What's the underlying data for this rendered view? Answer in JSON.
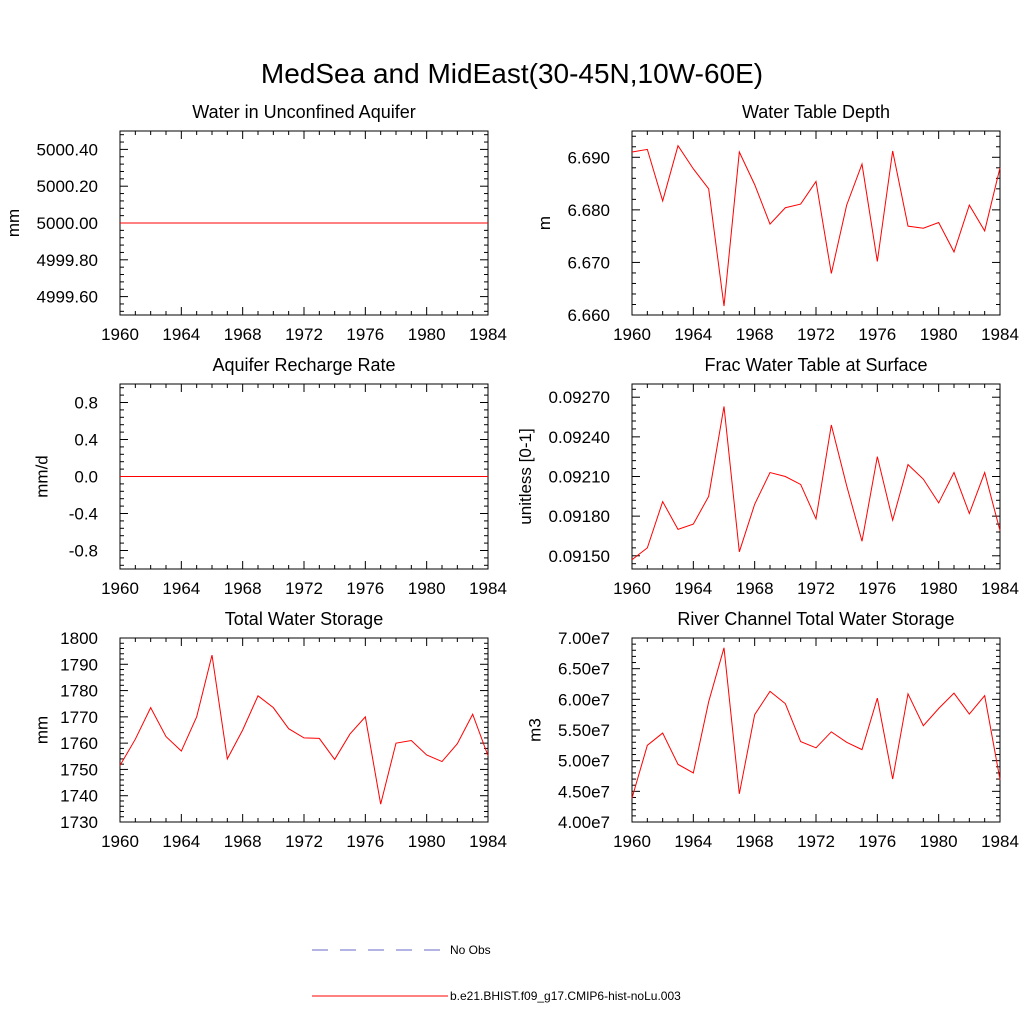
{
  "figure_title": "MedSea and MidEast(30-45N,10W-60E)",
  "legend": [
    {
      "label": "No Obs",
      "color": "#6a6ac8",
      "dash": true
    },
    {
      "label": "b.e21.BHIST.f09_g17.CMIP6-hist-noLu.003",
      "color": "#ff0000",
      "dash": false
    }
  ],
  "line_color": "#ff0000",
  "chart_data": [
    {
      "type": "line",
      "title": "Water in Unconfined Aquifer",
      "ylabel": "mm",
      "xlim": [
        1960,
        1984
      ],
      "ylim": [
        4999.5,
        5000.5
      ],
      "x_ticks": [
        1960,
        1964,
        1968,
        1972,
        1976,
        1980,
        1984
      ],
      "y_ticks": [
        4999.6,
        4999.8,
        5000.0,
        5000.2,
        5000.4
      ],
      "y_tick_labels": [
        "4999.60",
        "4999.80",
        "5000.00",
        "5000.20",
        "5000.40"
      ],
      "series": [
        {
          "color": "#ff0000",
          "x": [
            1960,
            1961,
            1962,
            1963,
            1964,
            1965,
            1966,
            1967,
            1968,
            1969,
            1970,
            1971,
            1972,
            1973,
            1974,
            1975,
            1976,
            1977,
            1978,
            1979,
            1980,
            1981,
            1982,
            1983,
            1984
          ],
          "values": [
            5000,
            5000,
            5000,
            5000,
            5000,
            5000,
            5000,
            5000,
            5000,
            5000,
            5000,
            5000,
            5000,
            5000,
            5000,
            5000,
            5000,
            5000,
            5000,
            5000,
            5000,
            5000,
            5000,
            5000,
            5000
          ]
        }
      ]
    },
    {
      "type": "line",
      "title": "Water Table Depth",
      "ylabel": "m",
      "xlim": [
        1960,
        1984
      ],
      "ylim": [
        6.66,
        6.695
      ],
      "x_ticks": [
        1960,
        1964,
        1968,
        1972,
        1976,
        1980,
        1984
      ],
      "y_ticks": [
        6.66,
        6.67,
        6.68,
        6.69
      ],
      "y_tick_labels": [
        "6.660",
        "6.670",
        "6.680",
        "6.690"
      ],
      "series": [
        {
          "color": "#ff0000",
          "x": [
            1960,
            1961,
            1962,
            1963,
            1964,
            1965,
            1966,
            1967,
            1968,
            1969,
            1970,
            1971,
            1972,
            1973,
            1974,
            1975,
            1976,
            1977,
            1978,
            1979,
            1980,
            1981,
            1982,
            1983,
            1984
          ],
          "values": [
            6.691,
            6.6915,
            6.6817,
            6.6922,
            6.6878,
            6.684,
            6.6617,
            6.691,
            6.6848,
            6.6773,
            6.6804,
            6.6811,
            6.6854,
            6.6679,
            6.6809,
            6.6887,
            6.6702,
            6.6912,
            6.6769,
            6.6765,
            6.6776,
            6.672,
            6.6809,
            6.676,
            6.688
          ]
        }
      ]
    },
    {
      "type": "line",
      "title": "Aquifer Recharge Rate",
      "ylabel": "mm/d",
      "xlim": [
        1960,
        1984
      ],
      "ylim": [
        -1.0,
        1.0
      ],
      "x_ticks": [
        1960,
        1964,
        1968,
        1972,
        1976,
        1980,
        1984
      ],
      "y_ticks": [
        -0.8,
        -0.4,
        0.0,
        0.4,
        0.8
      ],
      "y_tick_labels": [
        "-0.8",
        "-0.4",
        "0.0",
        "0.4",
        "0.8"
      ],
      "series": [
        {
          "color": "#ff0000",
          "x": [
            1960,
            1961,
            1962,
            1963,
            1964,
            1965,
            1966,
            1967,
            1968,
            1969,
            1970,
            1971,
            1972,
            1973,
            1974,
            1975,
            1976,
            1977,
            1978,
            1979,
            1980,
            1981,
            1982,
            1983,
            1984
          ],
          "values": [
            0,
            0,
            0,
            0,
            0,
            0,
            0,
            0,
            0,
            0,
            0,
            0,
            0,
            0,
            0,
            0,
            0,
            0,
            0,
            0,
            0,
            0,
            0,
            0,
            0
          ]
        }
      ]
    },
    {
      "type": "line",
      "title": "Frac Water Table at Surface",
      "ylabel": "unitless [0-1]",
      "xlim": [
        1960,
        1984
      ],
      "ylim": [
        0.0914,
        0.0928
      ],
      "x_ticks": [
        1960,
        1964,
        1968,
        1972,
        1976,
        1980,
        1984
      ],
      "y_ticks": [
        0.0915,
        0.0918,
        0.0921,
        0.0924,
        0.0927
      ],
      "y_tick_labels": [
        "0.09150",
        "0.09180",
        "0.09210",
        "0.09240",
        "0.09270"
      ],
      "series": [
        {
          "color": "#ff0000",
          "x": [
            1960,
            1961,
            1962,
            1963,
            1964,
            1965,
            1966,
            1967,
            1968,
            1969,
            1970,
            1971,
            1972,
            1973,
            1974,
            1975,
            1976,
            1977,
            1978,
            1979,
            1980,
            1981,
            1982,
            1983,
            1984
          ],
          "values": [
            0.09147,
            0.09156,
            0.09191,
            0.0917,
            0.09174,
            0.09195,
            0.09263,
            0.09153,
            0.09189,
            0.09213,
            0.0921,
            0.09204,
            0.09178,
            0.09249,
            0.09203,
            0.09161,
            0.09225,
            0.09177,
            0.09219,
            0.09208,
            0.0919,
            0.09213,
            0.09182,
            0.09213,
            0.09169
          ]
        }
      ]
    },
    {
      "type": "line",
      "title": "Total Water Storage",
      "ylabel": "mm",
      "xlim": [
        1960,
        1984
      ],
      "ylim": [
        1730,
        1800
      ],
      "x_ticks": [
        1960,
        1964,
        1968,
        1972,
        1976,
        1980,
        1984
      ],
      "y_ticks": [
        1730,
        1740,
        1750,
        1760,
        1770,
        1780,
        1790,
        1800
      ],
      "y_tick_labels": [
        "1730",
        "1740",
        "1750",
        "1760",
        "1770",
        "1780",
        "1790",
        "1800"
      ],
      "series": [
        {
          "color": "#ff0000",
          "x": [
            1960,
            1961,
            1962,
            1963,
            1964,
            1965,
            1966,
            1967,
            1968,
            1969,
            1970,
            1971,
            1972,
            1973,
            1974,
            1975,
            1976,
            1977,
            1978,
            1979,
            1980,
            1981,
            1982,
            1983,
            1984
          ],
          "values": [
            1751.5,
            1761.5,
            1773.5,
            1762.5,
            1757,
            1770,
            1793.5,
            1754,
            1765,
            1778,
            1773.5,
            1765.5,
            1762,
            1761.8,
            1753.8,
            1763.5,
            1770,
            1736.8,
            1760,
            1761,
            1755.5,
            1753,
            1759.8,
            1771,
            1755.2
          ]
        }
      ]
    },
    {
      "type": "line",
      "title": "River Channel Total Water Storage",
      "ylabel": "m3",
      "xlim": [
        1960,
        1984
      ],
      "ylim": [
        40000000,
        70000000
      ],
      "x_ticks": [
        1960,
        1964,
        1968,
        1972,
        1976,
        1980,
        1984
      ],
      "y_ticks": [
        40000000,
        45000000,
        50000000,
        55000000,
        60000000,
        65000000,
        70000000
      ],
      "y_tick_labels": [
        "4.00e7",
        "4.50e7",
        "5.00e7",
        "5.50e7",
        "6.00e7",
        "6.50e7",
        "7.00e7"
      ],
      "series": [
        {
          "color": "#ff0000",
          "x": [
            1960,
            1961,
            1962,
            1963,
            1964,
            1965,
            1966,
            1967,
            1968,
            1969,
            1970,
            1971,
            1972,
            1973,
            1974,
            1975,
            1976,
            1977,
            1978,
            1979,
            1980,
            1981,
            1982,
            1983,
            1984
          ],
          "values": [
            43900000,
            52500000,
            54500000,
            49400000,
            48000000,
            59600000,
            68400000,
            44600000,
            57500000,
            61300000,
            59300000,
            53100000,
            52100000,
            54700000,
            53000000,
            51800000,
            60200000,
            47000000,
            60900000,
            55700000,
            58500000,
            61000000,
            57600000,
            60600000,
            46900000
          ]
        }
      ]
    }
  ]
}
